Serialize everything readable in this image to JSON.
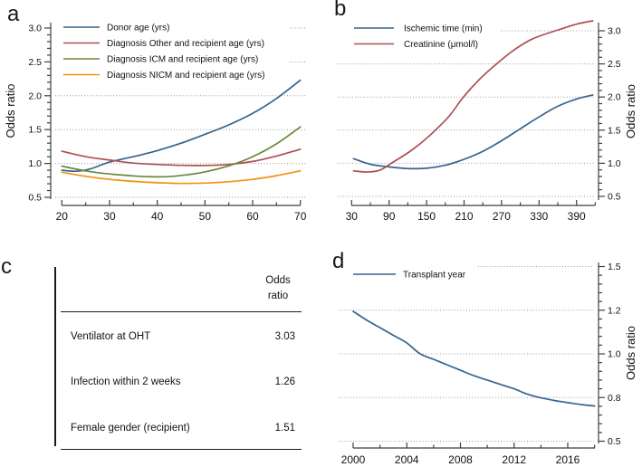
{
  "figure": {
    "panel_labels": {
      "a": "a",
      "b": "b",
      "c": "c",
      "d": "d"
    }
  },
  "chart_data": [
    {
      "id": "a",
      "type": "line",
      "ylabel": "Odds ratio",
      "xlabel": "",
      "ylim": [
        0.5,
        3.0
      ],
      "y_ticks": [
        0.5,
        1.0,
        1.5,
        2.0,
        2.5,
        3.0
      ],
      "x_ticks": [
        20,
        30,
        40,
        50,
        60,
        70
      ],
      "x_range": [
        20,
        70
      ],
      "grid": "dotted-horizontal",
      "legend_position": "top-left",
      "series": [
        {
          "name": "Donor age (yrs)",
          "color": "#36648E",
          "points": [
            [
              20,
              0.9
            ],
            [
              23,
              0.885
            ],
            [
              26,
              0.92
            ],
            [
              30,
              1.02
            ],
            [
              35,
              1.1
            ],
            [
              40,
              1.19
            ],
            [
              45,
              1.3
            ],
            [
              50,
              1.43
            ],
            [
              55,
              1.57
            ],
            [
              60,
              1.74
            ],
            [
              65,
              1.96
            ],
            [
              70,
              2.23
            ]
          ]
        },
        {
          "name": "Diagnosis Other and recipient age (yrs)",
          "color": "#AE4F54",
          "points": [
            [
              20,
              1.18
            ],
            [
              25,
              1.1
            ],
            [
              30,
              1.05
            ],
            [
              35,
              1.005
            ],
            [
              40,
              0.985
            ],
            [
              45,
              0.972
            ],
            [
              50,
              0.97
            ],
            [
              55,
              0.985
            ],
            [
              60,
              1.03
            ],
            [
              65,
              1.11
            ],
            [
              70,
              1.21
            ]
          ]
        },
        {
          "name": "Diagnosis ICM and recipient age (yrs)",
          "color": "#68883C",
          "points": [
            [
              20,
              0.96
            ],
            [
              25,
              0.89
            ],
            [
              30,
              0.845
            ],
            [
              35,
              0.815
            ],
            [
              38,
              0.805
            ],
            [
              42,
              0.805
            ],
            [
              46,
              0.83
            ],
            [
              50,
              0.875
            ],
            [
              55,
              0.965
            ],
            [
              60,
              1.1
            ],
            [
              65,
              1.29
            ],
            [
              70,
              1.54
            ]
          ]
        },
        {
          "name": "Diagnosis NICM and recipient age (yrs)",
          "color": "#F2920F",
          "points": [
            [
              20,
              0.87
            ],
            [
              25,
              0.81
            ],
            [
              30,
              0.765
            ],
            [
              35,
              0.735
            ],
            [
              40,
              0.715
            ],
            [
              45,
              0.705
            ],
            [
              50,
              0.71
            ],
            [
              55,
              0.73
            ],
            [
              60,
              0.765
            ],
            [
              65,
              0.82
            ],
            [
              70,
              0.89
            ]
          ]
        }
      ]
    },
    {
      "id": "b",
      "type": "line",
      "ylabel": "Odds ratio",
      "xlabel": "",
      "ylim": [
        0.5,
        3.2
      ],
      "y_ticks": [
        0.5,
        1.0,
        1.5,
        2.0,
        2.5,
        3.0
      ],
      "x_ticks": [
        30,
        90,
        150,
        210,
        270,
        330,
        390
      ],
      "x_range": [
        30,
        416
      ],
      "grid": "dotted-horizontal",
      "legend_position": "top-left",
      "series": [
        {
          "name": "Ischemic time (min)",
          "color": "#36648E",
          "points": [
            [
              33,
              1.07
            ],
            [
              60,
              0.985
            ],
            [
              90,
              0.945
            ],
            [
              120,
              0.92
            ],
            [
              150,
              0.925
            ],
            [
              180,
              0.97
            ],
            [
              210,
              1.06
            ],
            [
              240,
              1.18
            ],
            [
              270,
              1.34
            ],
            [
              300,
              1.52
            ],
            [
              330,
              1.7
            ],
            [
              360,
              1.86
            ],
            [
              390,
              1.97
            ],
            [
              416,
              2.03
            ]
          ]
        },
        {
          "name": "Creatinine (μmol/l)",
          "color": "#AE4F54",
          "points": [
            [
              33,
              0.885
            ],
            [
              55,
              0.868
            ],
            [
              75,
              0.895
            ],
            [
              95,
              1.01
            ],
            [
              125,
              1.19
            ],
            [
              155,
              1.42
            ],
            [
              185,
              1.7
            ],
            [
              209,
              2.0
            ],
            [
              235,
              2.27
            ],
            [
              262,
              2.5
            ],
            [
              290,
              2.71
            ],
            [
              320,
              2.88
            ],
            [
              363,
              3.02
            ],
            [
              390,
              3.1
            ],
            [
              416,
              3.15
            ]
          ]
        }
      ]
    },
    {
      "id": "d",
      "type": "line",
      "ylabel": "Odds ratio",
      "xlabel": "",
      "ylim": [
        0.5,
        1.5
      ],
      "y_ticks": [
        0.5,
        0.8,
        1.0,
        1.2,
        1.5
      ],
      "x_ticks": [
        2000,
        2004,
        2008,
        2012,
        2016
      ],
      "x_range": [
        2000,
        2018
      ],
      "grid": "dotted-horizontal",
      "legend_position": "top-left",
      "series": [
        {
          "name": "Transplant year",
          "color": "#36648E",
          "points": [
            [
              2000,
              1.195
            ],
            [
              2001,
              1.155
            ],
            [
              2002,
              1.12
            ],
            [
              2003,
              1.085
            ],
            [
              2004,
              1.05
            ],
            [
              2005,
              1.0
            ],
            [
              2006,
              0.975
            ],
            [
              2007,
              0.95
            ],
            [
              2008,
              0.925
            ],
            [
              2009,
              0.9
            ],
            [
              2010,
              0.88
            ],
            [
              2011,
              0.86
            ],
            [
              2012,
              0.84
            ],
            [
              2013,
              0.815
            ],
            [
              2014,
              0.798
            ],
            [
              2015,
              0.78
            ],
            [
              2016,
              0.765
            ],
            [
              2017,
              0.752
            ],
            [
              2018,
              0.742
            ]
          ]
        }
      ]
    }
  ],
  "table": {
    "panel": "c",
    "header": "Odds ratio",
    "rows": [
      {
        "label": "Ventilator at OHT",
        "value": "3.03"
      },
      {
        "label": "Infection within 2 weeks",
        "value": "1.26"
      },
      {
        "label": "Female gender (recipient)",
        "value": "1.51"
      }
    ]
  }
}
